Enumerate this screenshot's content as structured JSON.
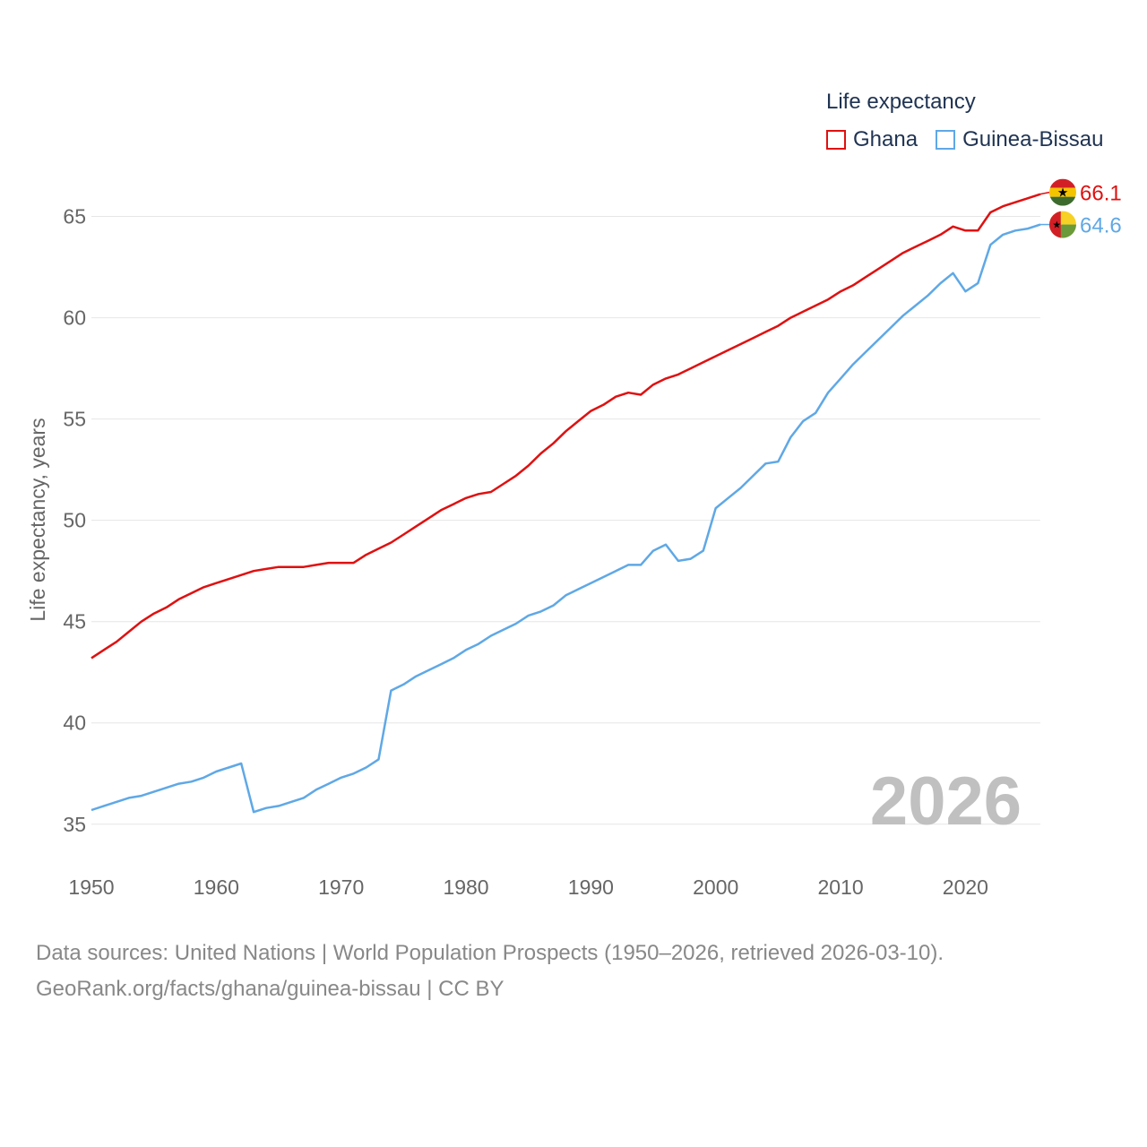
{
  "legend": {
    "title": "Life expectancy",
    "items": [
      {
        "label": "Ghana",
        "color": "#e01010"
      },
      {
        "label": "Guinea-Bissau",
        "color": "#5fa8e6"
      }
    ]
  },
  "source": {
    "line1": "Data sources: United Nations | World Population Prospects (1950–2026, retrieved 2026-03-10).",
    "line2": "GeoRank.org/facts/ghana/guinea-bissau | CC BY"
  },
  "chart_data": {
    "type": "line",
    "title": "Life expectancy",
    "xlabel": "",
    "ylabel": "Life expectancy, years",
    "xlim": [
      1950,
      2026
    ],
    "ylim": [
      33,
      67.5
    ],
    "x_ticks": [
      1950,
      1960,
      1970,
      1980,
      1990,
      2000,
      2010,
      2020
    ],
    "y_ticks": [
      35,
      40,
      45,
      50,
      55,
      60,
      65
    ],
    "grid": true,
    "year_label": "2026",
    "x": [
      1950,
      1951,
      1952,
      1953,
      1954,
      1955,
      1956,
      1957,
      1958,
      1959,
      1960,
      1961,
      1962,
      1963,
      1964,
      1965,
      1966,
      1967,
      1968,
      1969,
      1970,
      1971,
      1972,
      1973,
      1974,
      1975,
      1976,
      1977,
      1978,
      1979,
      1980,
      1981,
      1982,
      1983,
      1984,
      1985,
      1986,
      1987,
      1988,
      1989,
      1990,
      1991,
      1992,
      1993,
      1994,
      1995,
      1996,
      1997,
      1998,
      1999,
      2000,
      2001,
      2002,
      2003,
      2004,
      2005,
      2006,
      2007,
      2008,
      2009,
      2010,
      2011,
      2012,
      2013,
      2014,
      2015,
      2016,
      2017,
      2018,
      2019,
      2020,
      2021,
      2022,
      2023,
      2024,
      2025,
      2026
    ],
    "series": [
      {
        "name": "Ghana",
        "color": "#e01010",
        "end_label": "66.1",
        "flag": "ghana-flag-icon",
        "values": [
          43.2,
          43.6,
          44.0,
          44.5,
          45.0,
          45.4,
          45.7,
          46.1,
          46.4,
          46.7,
          46.9,
          47.1,
          47.3,
          47.5,
          47.6,
          47.7,
          47.7,
          47.7,
          47.8,
          47.9,
          47.9,
          47.9,
          48.3,
          48.6,
          48.9,
          49.3,
          49.7,
          50.1,
          50.5,
          50.8,
          51.1,
          51.3,
          51.4,
          51.8,
          52.2,
          52.7,
          53.3,
          53.8,
          54.4,
          54.9,
          55.4,
          55.7,
          56.1,
          56.3,
          56.2,
          56.7,
          57.0,
          57.2,
          57.5,
          57.8,
          58.1,
          58.4,
          58.7,
          59.0,
          59.3,
          59.6,
          60.0,
          60.3,
          60.6,
          60.9,
          61.3,
          61.6,
          62.0,
          62.4,
          62.8,
          63.2,
          63.5,
          63.8,
          64.1,
          64.5,
          64.3,
          64.3,
          65.2,
          65.5,
          65.7,
          65.9,
          66.1
        ]
      },
      {
        "name": "Guinea-Bissau",
        "color": "#5fa8e6",
        "end_label": "64.6",
        "flag": "guinea-bissau-flag-icon",
        "values": [
          35.7,
          35.9,
          36.1,
          36.3,
          36.4,
          36.6,
          36.8,
          37.0,
          37.1,
          37.3,
          37.6,
          37.8,
          38.0,
          35.6,
          35.8,
          35.9,
          36.1,
          36.3,
          36.7,
          37.0,
          37.3,
          37.5,
          37.8,
          38.2,
          41.6,
          41.9,
          42.3,
          42.6,
          42.9,
          43.2,
          43.6,
          43.9,
          44.3,
          44.6,
          44.9,
          45.3,
          45.5,
          45.8,
          46.3,
          46.6,
          46.9,
          47.2,
          47.5,
          47.8,
          47.8,
          48.5,
          48.8,
          48.0,
          48.1,
          48.5,
          50.6,
          51.1,
          51.6,
          52.2,
          52.8,
          52.9,
          54.1,
          54.9,
          55.3,
          56.3,
          57.0,
          57.7,
          58.3,
          58.9,
          59.5,
          60.1,
          60.6,
          61.1,
          61.7,
          62.2,
          61.3,
          61.7,
          63.6,
          64.1,
          64.3,
          64.4,
          64.6
        ]
      }
    ]
  }
}
